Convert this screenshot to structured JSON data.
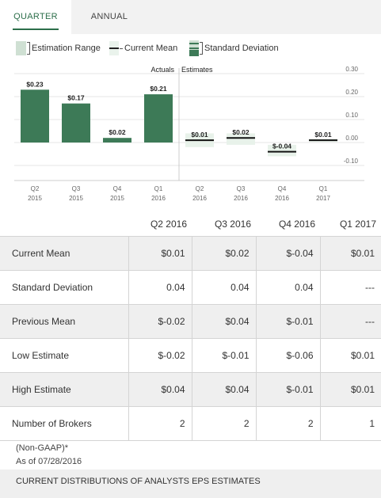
{
  "tabs": [
    {
      "label": "QUARTER"
    },
    {
      "label": "ANNUAL"
    }
  ],
  "legend": {
    "range_label": "Estimation Range",
    "mean_label": "Current Mean",
    "sd_label": "Standard Deviation"
  },
  "colors": {
    "accent": "#2c6e4a",
    "bar": "#3d7a57",
    "range": "#e8f2ea",
    "legend_box": "#cfe0d3",
    "grid": "#e4e4e4"
  },
  "chart_data": {
    "type": "bar",
    "section_labels": {
      "actuals": "Actuals",
      "estimates": "Estimates"
    },
    "categories": [
      [
        "Q2",
        "2015"
      ],
      [
        "Q3",
        "2015"
      ],
      [
        "Q4",
        "2015"
      ],
      [
        "Q1",
        "2016"
      ],
      [
        "Q2",
        "2016"
      ],
      [
        "Q3",
        "2016"
      ],
      [
        "Q4",
        "2016"
      ],
      [
        "Q1",
        "2017"
      ]
    ],
    "actuals": [
      {
        "value": 0.23,
        "label": "$0.23"
      },
      {
        "value": 0.17,
        "label": "$0.17"
      },
      {
        "value": 0.02,
        "label": "$0.02"
      },
      {
        "value": 0.21,
        "label": "$0.21"
      }
    ],
    "estimates": [
      {
        "mean": 0.01,
        "low": -0.02,
        "high": 0.04,
        "label": "$0.01"
      },
      {
        "mean": 0.02,
        "low": -0.01,
        "high": 0.04,
        "label": "$0.02"
      },
      {
        "mean": -0.04,
        "low": -0.06,
        "high": -0.01,
        "label": "$-0.04"
      },
      {
        "mean": 0.01,
        "low": 0.01,
        "high": 0.01,
        "label": "$0.01"
      }
    ],
    "yticks": [
      {
        "value": 0.3,
        "label": "0.30"
      },
      {
        "value": 0.2,
        "label": "0.20"
      },
      {
        "value": 0.1,
        "label": "0.10"
      },
      {
        "value": 0.0,
        "label": "0.00"
      },
      {
        "value": -0.1,
        "label": "-0.10"
      }
    ],
    "ylim": [
      -0.12,
      0.3
    ],
    "grid": true
  },
  "table": {
    "headers": [
      "",
      "Q2 2016",
      "Q3 2016",
      "Q4 2016",
      "Q1 2017"
    ],
    "rows": [
      {
        "label": "Current Mean",
        "values": [
          "$0.01",
          "$0.02",
          "$-0.04",
          "$0.01"
        ]
      },
      {
        "label": "Standard Deviation",
        "values": [
          "0.04",
          "0.04",
          "0.04",
          "---"
        ]
      },
      {
        "label": "Previous Mean",
        "values": [
          "$-0.02",
          "$0.04",
          "$-0.01",
          "---"
        ]
      },
      {
        "label": "Low Estimate",
        "values": [
          "$-0.02",
          "$-0.01",
          "$-0.06",
          "$0.01"
        ]
      },
      {
        "label": "High Estimate",
        "values": [
          "$0.04",
          "$0.04",
          "$-0.01",
          "$0.01"
        ]
      },
      {
        "label": "Number of Brokers",
        "values": [
          "2",
          "2",
          "2",
          "1"
        ]
      }
    ]
  },
  "footnote": {
    "non_gaap": "(Non-GAAP)*",
    "as_of": "As of 07/28/2016"
  },
  "bottom_bar": {
    "label": "CURRENT DISTRIBUTIONS OF ANALYSTS EPS ESTIMATES"
  }
}
